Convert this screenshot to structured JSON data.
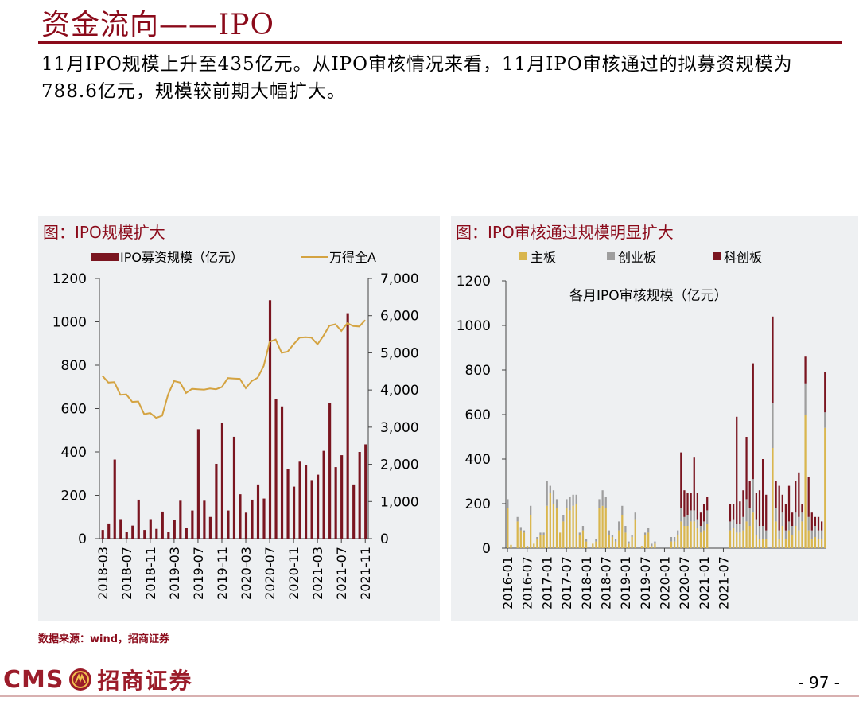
{
  "page": {
    "title": "资金流向——IPO",
    "description": "11月IPO规模上升至435亿元。从IPO审核情况来看，11月IPO审核通过的拟募资规模为788.6亿元，规模较前期大幅扩大。",
    "source": "数据来源：wind，招商证券",
    "logo_text_en": "CMS",
    "logo_text_cn": "招商证券",
    "page_number": "- 97 -"
  },
  "colors": {
    "brand": "#8b0a1a",
    "bar": "#7a1520",
    "line": "#d4a341",
    "main_board": "#d9b64e",
    "chinext": "#9e9e9e",
    "star": "#7a1520"
  },
  "chart_data": [
    {
      "type": "bar",
      "title": "图：IPO规模扩大",
      "legend": [
        "IPO募资规模（亿元）",
        "万得全A"
      ],
      "series": [
        {
          "name": "IPO募资规模（亿元）",
          "axis": "left",
          "values": [
            40,
            70,
            365,
            90,
            30,
            60,
            180,
            40,
            90,
            45,
            125,
            30,
            85,
            175,
            50,
            130,
            505,
            175,
            100,
            345,
            535,
            130,
            470,
            205,
            120,
            180,
            250,
            185,
            1100,
            645,
            610,
            320,
            240,
            355,
            340,
            270,
            295,
            405,
            625,
            330,
            385,
            1040,
            250,
            400,
            435
          ]
        },
        {
          "name": "万得全A",
          "axis": "right",
          "type": "line",
          "values": [
            4380,
            4200,
            4210,
            3870,
            3880,
            3680,
            3690,
            3350,
            3380,
            3250,
            3310,
            3880,
            4240,
            4200,
            3920,
            4030,
            4020,
            4010,
            4040,
            4020,
            4080,
            4320,
            4310,
            4300,
            4050,
            4240,
            4330,
            4650,
            5300,
            5360,
            5000,
            5030,
            5230,
            5410,
            5420,
            5410,
            5230,
            5460,
            5730,
            5770,
            5590,
            5800,
            5720,
            5710,
            5880
          ]
        }
      ],
      "x_tick_labels": [
        "2018-03",
        "2018-07",
        "2018-11",
        "2019-03",
        "2019-07",
        "2019-11",
        "2020-03",
        "2020-07",
        "2020-11",
        "2021-03",
        "2021-07",
        "2021-11"
      ],
      "ylim_left": [
        0,
        1200
      ],
      "yticks_left": [
        "0",
        "200",
        "400",
        "600",
        "800",
        "1000",
        "1200"
      ],
      "ylim_right": [
        0,
        7000
      ],
      "yticks_right": [
        "0",
        "1,000",
        "2,000",
        "3,000",
        "4,000",
        "5,000",
        "6,000",
        "7,000"
      ],
      "legend_position": "top"
    },
    {
      "type": "bar",
      "stacked": true,
      "title": "图：IPO审核通过规模明显扩大",
      "annotation": "各月IPO审核规模（亿元）",
      "legend": [
        "主板",
        "创业板",
        "科创板"
      ],
      "series": [
        {
          "name": "主板",
          "values": [
            180,
            15,
            0,
            120,
            80,
            70,
            10,
            150,
            20,
            40,
            60,
            60,
            190,
            250,
            200,
            180,
            70,
            120,
            180,
            170,
            190,
            200,
            60,
            80,
            30,
            0,
            20,
            30,
            180,
            190,
            180,
            60,
            50,
            30,
            80,
            150,
            70,
            20,
            50,
            130,
            0,
            10,
            60,
            70,
            10,
            20,
            0,
            0,
            0,
            0,
            30,
            30,
            60,
            120,
            100,
            100,
            120,
            120,
            90,
            70,
            80,
            110,
            0,
            0,
            0,
            0,
            0,
            0,
            80,
            90,
            70,
            70,
            80,
            120,
            100,
            160,
            60,
            40,
            40,
            40,
            0,
            450,
            120,
            40,
            100,
            40,
            80,
            60,
            100,
            80,
            120,
            600,
            80,
            40,
            50,
            40,
            40,
            540
          ]
        },
        {
          "name": "创业板",
          "values": [
            40,
            0,
            0,
            20,
            15,
            10,
            0,
            40,
            0,
            10,
            10,
            10,
            110,
            30,
            60,
            40,
            0,
            30,
            40,
            60,
            50,
            40,
            10,
            20,
            10,
            0,
            0,
            10,
            40,
            70,
            50,
            20,
            10,
            10,
            40,
            40,
            30,
            10,
            10,
            30,
            0,
            0,
            10,
            20,
            10,
            10,
            0,
            0,
            0,
            0,
            20,
            20,
            20,
            60,
            40,
            50,
            50,
            50,
            40,
            30,
            40,
            60,
            0,
            0,
            0,
            0,
            0,
            0,
            40,
            40,
            40,
            40,
            60,
            100,
            80,
            150,
            70,
            60,
            60,
            40,
            0,
            200,
            60,
            40,
            60,
            40,
            40,
            40,
            60,
            60,
            40,
            140,
            60,
            40,
            50,
            40,
            40,
            70
          ]
        },
        {
          "name": "科创板",
          "values": [
            0,
            0,
            0,
            0,
            0,
            0,
            0,
            0,
            0,
            0,
            0,
            0,
            0,
            0,
            0,
            0,
            0,
            0,
            0,
            0,
            0,
            0,
            0,
            0,
            0,
            0,
            0,
            0,
            0,
            0,
            0,
            0,
            0,
            0,
            0,
            0,
            0,
            0,
            0,
            0,
            0,
            0,
            0,
            0,
            0,
            0,
            0,
            0,
            0,
            0,
            0,
            0,
            0,
            250,
            120,
            100,
            80,
            240,
            120,
            60,
            80,
            60,
            0,
            0,
            0,
            0,
            0,
            0,
            80,
            70,
            480,
            100,
            120,
            280,
            120,
            520,
            120,
            160,
            300,
            160,
            0,
            390,
            120,
            200,
            80,
            120,
            160,
            60,
            140,
            200,
            40,
            120,
            180,
            80,
            40,
            60,
            40,
            180
          ]
        }
      ],
      "x_tick_labels": [
        "2016-01",
        "2016-07",
        "2017-01",
        "2017-07",
        "2018-01",
        "2018-07",
        "2019-01",
        "2019-07",
        "2020-01",
        "2020-07",
        "2021-01",
        "2021-07"
      ],
      "ylim": [
        0,
        1200
      ],
      "yticks": [
        "0",
        "200",
        "400",
        "600",
        "800",
        "1000",
        "1200"
      ],
      "legend_position": "top"
    }
  ]
}
